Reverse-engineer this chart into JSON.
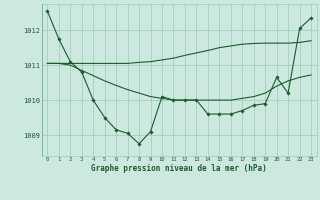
{
  "title": "Graphe pression niveau de la mer (hPa)",
  "bg_color": "#cce8df",
  "grid_color": "#99ccbb",
  "line_color": "#1a5c2a",
  "xlim": [
    -0.5,
    23.5
  ],
  "ylim": [
    1008.4,
    1012.75
  ],
  "yticks": [
    1009,
    1010,
    1011,
    1012
  ],
  "xticks": [
    0,
    1,
    2,
    3,
    4,
    5,
    6,
    7,
    8,
    9,
    10,
    11,
    12,
    13,
    14,
    15,
    16,
    17,
    18,
    19,
    20,
    21,
    22,
    23
  ],
  "series1_x": [
    0,
    1,
    2,
    3,
    4,
    5,
    6,
    7,
    8,
    9,
    10,
    11,
    12,
    13,
    14,
    15,
    16,
    17,
    18,
    19,
    20,
    21,
    22,
    23
  ],
  "series1_y": [
    1012.55,
    1011.75,
    1011.1,
    1010.8,
    1010.0,
    1009.5,
    1009.15,
    1009.05,
    1008.75,
    1009.1,
    1010.1,
    1010.0,
    1010.0,
    1010.0,
    1009.6,
    1009.6,
    1009.6,
    1009.7,
    1009.85,
    1009.9,
    1010.65,
    1010.2,
    1012.05,
    1012.35
  ],
  "series2_x": [
    0,
    1,
    2,
    3,
    4,
    5,
    6,
    7,
    8,
    9,
    10,
    11,
    12,
    13,
    14,
    15,
    16,
    17,
    18,
    19,
    20,
    21,
    22,
    23
  ],
  "series2_y": [
    1011.05,
    1011.05,
    1011.05,
    1011.05,
    1011.05,
    1011.05,
    1011.05,
    1011.05,
    1011.08,
    1011.1,
    1011.15,
    1011.2,
    1011.28,
    1011.35,
    1011.42,
    1011.5,
    1011.55,
    1011.6,
    1011.62,
    1011.63,
    1011.63,
    1011.63,
    1011.65,
    1011.7
  ],
  "series3_x": [
    0,
    1,
    2,
    3,
    4,
    5,
    6,
    7,
    8,
    9,
    10,
    11,
    12,
    13,
    14,
    15,
    16,
    17,
    18,
    19,
    20,
    21,
    22,
    23
  ],
  "series3_y": [
    1011.05,
    1011.05,
    1011.0,
    1010.85,
    1010.7,
    1010.55,
    1010.42,
    1010.3,
    1010.2,
    1010.1,
    1010.05,
    1010.0,
    1010.0,
    1010.0,
    1010.0,
    1010.0,
    1010.0,
    1010.05,
    1010.1,
    1010.2,
    1010.4,
    1010.55,
    1010.65,
    1010.72
  ]
}
